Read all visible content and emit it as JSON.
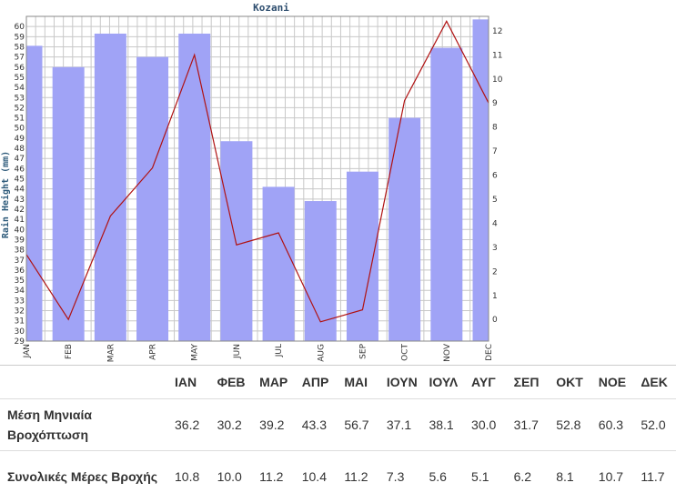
{
  "chart_data": {
    "type": "bar",
    "title": "Kozani",
    "ylabel": "Rain Height (mm)",
    "categories": [
      "JAN",
      "FEB",
      "MAR",
      "APR",
      "MAY",
      "JUN",
      "JUL",
      "AUG",
      "SEP",
      "OCT",
      "NOV",
      "DEC"
    ],
    "ylim": [
      29,
      61
    ],
    "y2lim": [
      -0.9,
      12.6
    ],
    "yticks": [
      29,
      30,
      31,
      32,
      33,
      34,
      35,
      36,
      37,
      38,
      39,
      40,
      41,
      42,
      43,
      44,
      45,
      46,
      47,
      48,
      49,
      50,
      51,
      52,
      53,
      54,
      55,
      56,
      57,
      58,
      59,
      60
    ],
    "y2ticks": [
      0,
      1,
      2,
      3,
      4,
      5,
      6,
      7,
      8,
      9,
      10,
      11,
      12
    ],
    "grid": true,
    "series": [
      {
        "type": "bar",
        "axis": "left",
        "color": "#a0a3f6",
        "values": [
          58.1,
          56.0,
          59.3,
          57.0,
          59.3,
          48.7,
          44.2,
          42.8,
          45.7,
          51.0,
          57.9,
          60.7
        ]
      },
      {
        "type": "line",
        "axis": "right",
        "color": "#b01212",
        "values": [
          2.7,
          0.0,
          4.3,
          6.3,
          11.0,
          3.1,
          3.6,
          -0.1,
          0.4,
          9.1,
          12.4,
          9.0
        ]
      }
    ]
  },
  "table": {
    "headers": [
      "",
      "ΙΑΝ",
      "ΦΕΒ",
      "ΜΑΡ",
      "ΑΠΡ",
      "ΜΑΙ",
      "ΙΟΥΝ",
      "ΙΟΥΛ",
      "ΑΥΓ",
      "ΣΕΠ",
      "ΟΚΤ",
      "ΝΟΕ",
      "ΔΕΚ"
    ],
    "rows": [
      {
        "label": "Μέση Μηνιαία Βροχόπτωση",
        "values": [
          "36.2",
          "30.2",
          "39.2",
          "43.3",
          "56.7",
          "37.1",
          "38.1",
          "30.0",
          "31.7",
          "52.8",
          "60.3",
          "52.0"
        ]
      },
      {
        "label": "Συνολικές Μέρες Βροχής",
        "values": [
          "10.8",
          "10.0",
          "11.2",
          "10.4",
          "11.2",
          "7.3",
          "5.6",
          "5.1",
          "6.2",
          "8.1",
          "10.7",
          "11.7"
        ]
      }
    ]
  }
}
